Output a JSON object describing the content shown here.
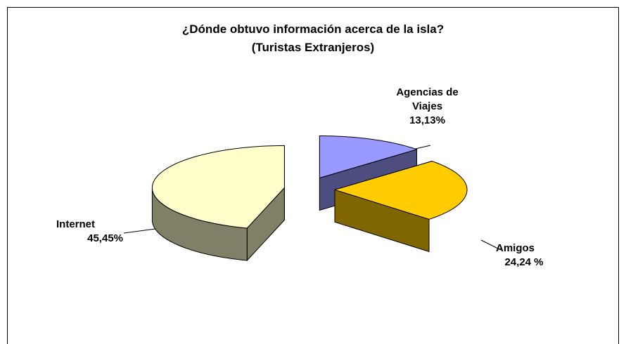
{
  "chart_data": {
    "type": "pie3d",
    "title": "¿Dónde obtuvo información acerca de la isla?",
    "subtitle": "(Turistas Extranjeros)",
    "categories": [
      "Internet",
      "Agencias de Viajes",
      "Amigos"
    ],
    "values": [
      45.45,
      13.13,
      24.24
    ],
    "value_labels": [
      "45,45%",
      "13,13%",
      "24,24 %"
    ],
    "colors": [
      "#ffffcc",
      "#9999ff",
      "#ffcc00"
    ]
  }
}
